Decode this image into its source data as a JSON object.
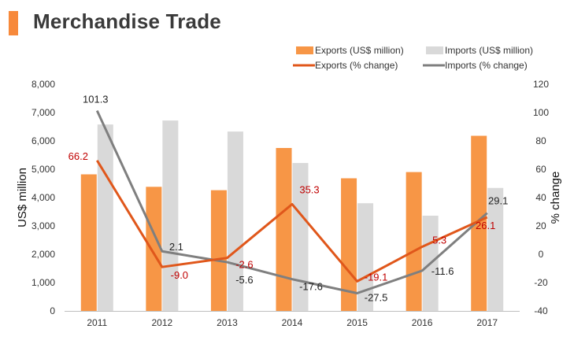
{
  "title": "Merchandise Trade",
  "colors": {
    "exports_bar": "#f79646",
    "imports_bar": "#d9d9d9",
    "exports_line": "#e0571b",
    "imports_line": "#7f7f7f",
    "exports_label": "#c00000",
    "imports_label": "#222222"
  },
  "chart_data": {
    "type": "bar",
    "categories": [
      "2011",
      "2012",
      "2013",
      "2014",
      "2015",
      "2016",
      "2017"
    ],
    "ylabel": "US$ million",
    "y2label": "% change",
    "ylim": [
      0,
      8000
    ],
    "y2lim": [
      -40,
      120
    ],
    "yticks": [
      "0",
      "1,000",
      "2,000",
      "3,000",
      "4,000",
      "5,000",
      "6,000",
      "7,000",
      "8,000"
    ],
    "y2ticks": [
      "-40",
      "-20",
      "0",
      "20",
      "40",
      "60",
      "80",
      "100",
      "120"
    ],
    "legend_position": "top-right",
    "series": [
      {
        "name": "Exports (US$ million)",
        "type": "bar",
        "axis": "left",
        "values": [
          4820,
          4380,
          4260,
          5750,
          4680,
          4900,
          6180
        ]
      },
      {
        "name": "Imports (US$ million)",
        "type": "bar",
        "axis": "left",
        "values": [
          6580,
          6720,
          6330,
          5220,
          3800,
          3360,
          4340
        ]
      },
      {
        "name": "Exports (% change)",
        "type": "line",
        "axis": "right",
        "values": [
          66.2,
          -9.0,
          -2.6,
          35.3,
          -19.1,
          5.3,
          26.1
        ],
        "labels": [
          "66.2",
          "-9.0",
          "-2.6",
          "35.3",
          "-19.1",
          "5.3",
          "26.1"
        ]
      },
      {
        "name": "Imports (% change)",
        "type": "line",
        "axis": "right",
        "values": [
          101.3,
          2.1,
          -5.6,
          -17.6,
          -27.5,
          -11.6,
          29.1
        ],
        "labels": [
          "101.3",
          "2.1",
          "-5.6",
          "-17.6",
          "-27.5",
          "-11.6",
          "29.1"
        ]
      }
    ]
  }
}
